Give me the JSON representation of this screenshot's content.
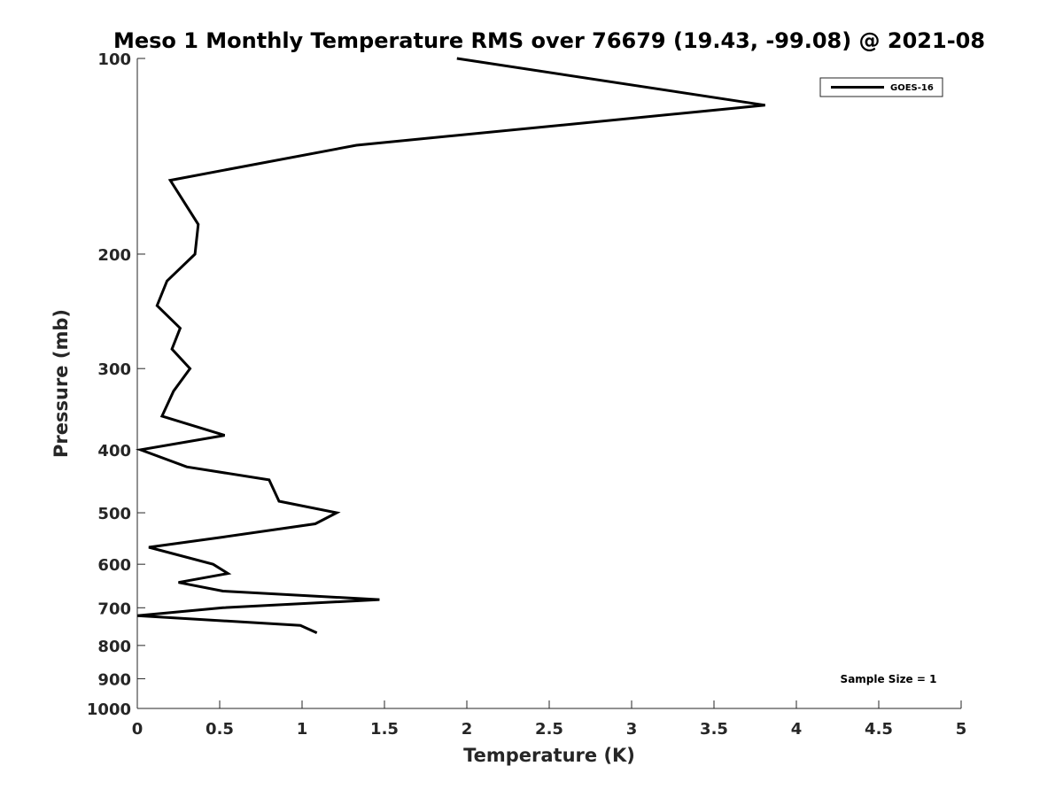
{
  "chart_data": {
    "type": "line",
    "title": "Meso 1 Monthly Temperature RMS over 76679 (19.43, -99.08) @ 2021-08",
    "xlabel": "Temperature (K)",
    "ylabel": "Pressure (mb)",
    "xlim": [
      0,
      5
    ],
    "ylim": [
      100,
      1000
    ],
    "y_scale": "log",
    "y_reversed": true,
    "x_ticks": [
      "0",
      "0.5",
      "1",
      "1.5",
      "2",
      "2.5",
      "3",
      "3.5",
      "4",
      "4.5",
      "5"
    ],
    "x_tick_values": [
      0,
      0.5,
      1,
      1.5,
      2,
      2.5,
      3,
      3.5,
      4,
      4.5,
      5
    ],
    "y_ticks": [
      "100",
      "200",
      "300",
      "400",
      "500",
      "600",
      "700",
      "800",
      "900",
      "1000"
    ],
    "y_tick_values": [
      100,
      200,
      300,
      400,
      500,
      600,
      700,
      800,
      900,
      1000
    ],
    "grid": false,
    "legend_position": "top-right",
    "series": [
      {
        "name": "GOES-16",
        "color": "#000000",
        "points": [
          {
            "x": 1.94,
            "p": 100
          },
          {
            "x": 3.81,
            "p": 118
          },
          {
            "x": 1.33,
            "p": 136
          },
          {
            "x": 0.2,
            "p": 154
          },
          {
            "x": 0.37,
            "p": 180
          },
          {
            "x": 0.35,
            "p": 200
          },
          {
            "x": 0.18,
            "p": 220
          },
          {
            "x": 0.12,
            "p": 240
          },
          {
            "x": 0.26,
            "p": 260
          },
          {
            "x": 0.21,
            "p": 280
          },
          {
            "x": 0.32,
            "p": 300
          },
          {
            "x": 0.22,
            "p": 325
          },
          {
            "x": 0.15,
            "p": 355
          },
          {
            "x": 0.53,
            "p": 380
          },
          {
            "x": 0.02,
            "p": 400
          },
          {
            "x": 0.3,
            "p": 425
          },
          {
            "x": 0.8,
            "p": 445
          },
          {
            "x": 0.86,
            "p": 480
          },
          {
            "x": 1.21,
            "p": 500
          },
          {
            "x": 1.08,
            "p": 520
          },
          {
            "x": 0.52,
            "p": 545
          },
          {
            "x": 0.07,
            "p": 565
          },
          {
            "x": 0.46,
            "p": 600
          },
          {
            "x": 0.55,
            "p": 620
          },
          {
            "x": 0.25,
            "p": 640
          },
          {
            "x": 0.52,
            "p": 660
          },
          {
            "x": 1.47,
            "p": 680
          },
          {
            "x": 0.52,
            "p": 700
          },
          {
            "x": 0.0,
            "p": 720
          },
          {
            "x": 0.99,
            "p": 745
          },
          {
            "x": 1.09,
            "p": 765
          }
        ]
      }
    ],
    "annotation": "Sample Size = 1"
  }
}
